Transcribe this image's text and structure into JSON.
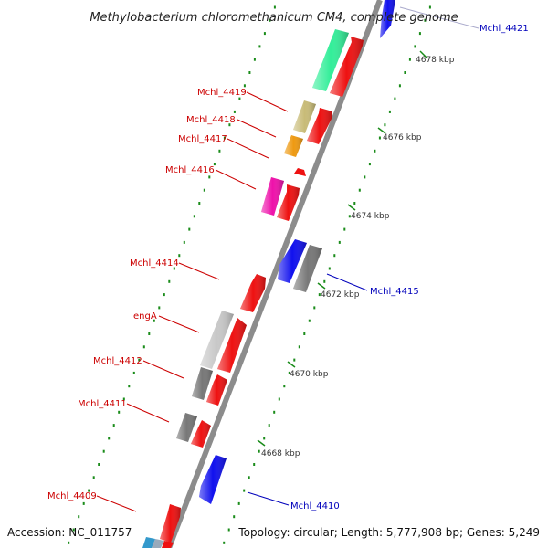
{
  "title": "Methylobacterium chloromethanicum CM4, complete genome",
  "footer": {
    "accession": "Accession: NC_011757",
    "summary": "Topology: circular; Length: 5,777,908 bp; Genes: 5,249"
  },
  "colors": {
    "backbone": "#8c8c8c",
    "tick": "#1a8c1a",
    "forward_label": "#cc0000",
    "reverse_label": "#0000bb",
    "kbp_label": "#333333"
  },
  "kbp_ticks": [
    "4678 kbp",
    "4676 kbp",
    "4674 kbp",
    "4672 kbp",
    "4670 kbp",
    "4668 kbp"
  ],
  "forward_labels": [
    "Mchl_4419",
    "Mchl_4418",
    "Mchl_4417",
    "Mchl_4416",
    "Mchl_4414",
    "engA",
    "Mchl_4412",
    "Mchl_4411",
    "Mchl_4409"
  ],
  "reverse_labels": [
    "Mchl_4421",
    "Mchl_4415",
    "Mchl_4410"
  ],
  "feature_colors": {
    "cds_forward": "#ee1111",
    "cds_reverse": "#1111ee",
    "cog_teal": "#33ee99",
    "cog_khaki": "#c8bb77",
    "cog_orange": "#ee9911",
    "cog_pink": "#ee11aa",
    "cog_gray": "#777777",
    "cog_lightgray": "#c8c8c8"
  }
}
